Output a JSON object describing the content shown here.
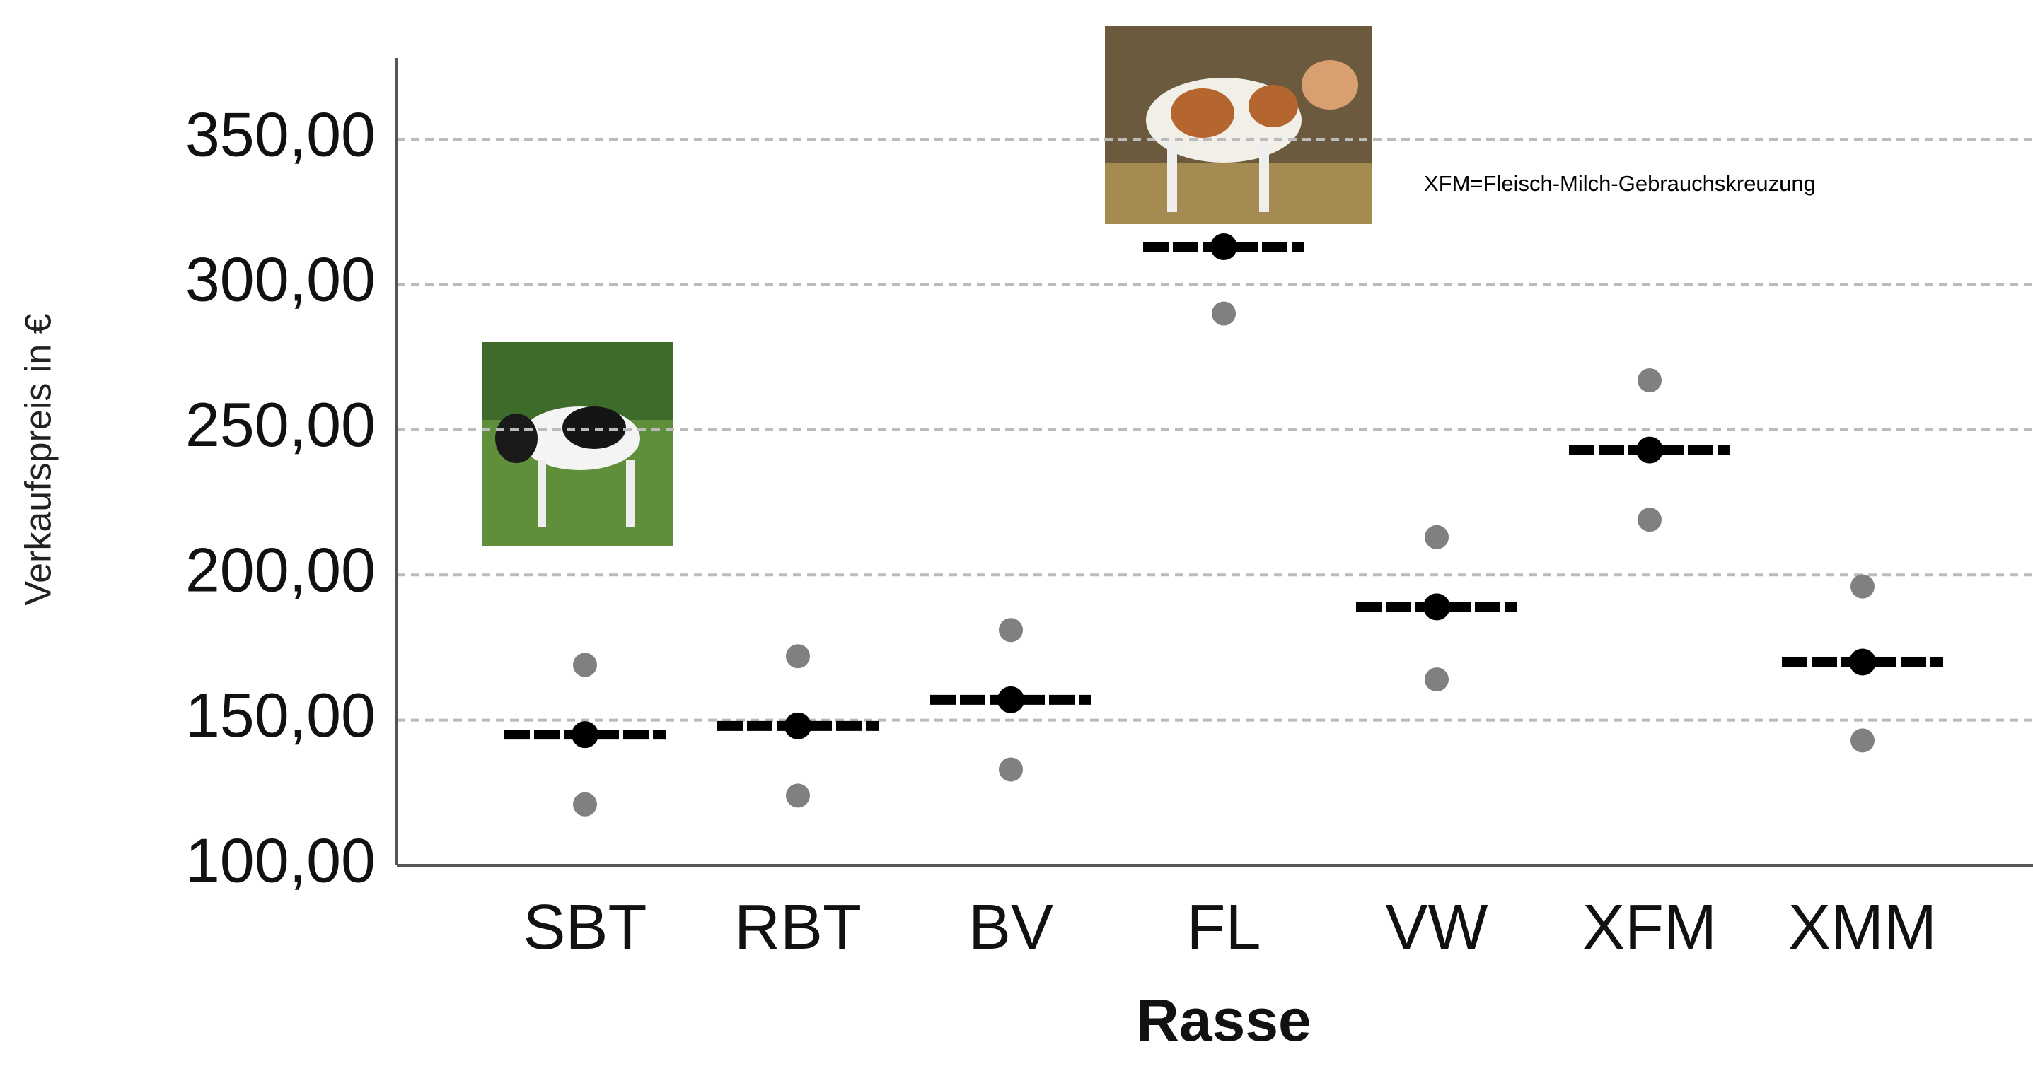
{
  "chart_data": {
    "type": "dotplot",
    "y_label": "Verkaufspreis in €",
    "x_label": "Rasse",
    "annotation": "XFM=Fleisch-Milch-Gebrauchskreuzung",
    "categories": [
      "SBT",
      "RBT",
      "BV",
      "FL",
      "VW",
      "XFM",
      "XMM"
    ],
    "values": [
      145,
      148,
      157,
      313,
      189,
      243,
      170
    ],
    "upper_values": [
      169,
      172,
      181,
      null,
      213,
      267,
      196
    ],
    "lower_values": [
      121,
      124,
      133,
      290,
      164,
      219,
      143
    ],
    "color": "#000000",
    "point_color": "#808080",
    "ylim": [
      100,
      378
    ],
    "yticks": [
      {
        "value": 100,
        "label": "100,00"
      },
      {
        "value": 150,
        "label": "150,00"
      },
      {
        "value": 200,
        "label": "200,00"
      },
      {
        "value": 250,
        "label": "250,00"
      },
      {
        "value": 300,
        "label": "300,00"
      },
      {
        "value": 350,
        "label": "350,00"
      }
    ],
    "grid": true
  }
}
